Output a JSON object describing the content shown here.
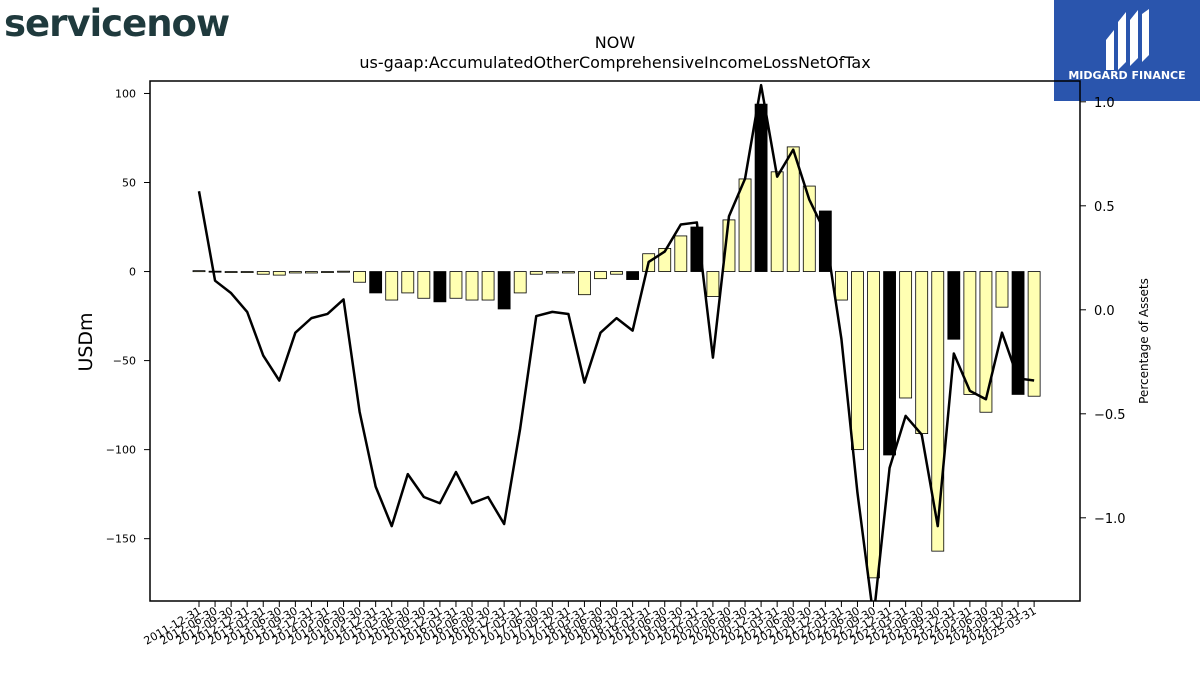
{
  "logos": {
    "left_text": "servicenow",
    "right_text": "MIDGARD FINANCE"
  },
  "chart_data": {
    "type": "bar",
    "title": "NOW",
    "subtitle": "us-gaap:AccumulatedOtherComprehensiveIncomeLossNetOfTax",
    "ylabel": "USDm",
    "y2label": "Percentage of Assets",
    "ylim": [
      -185,
      107
    ],
    "y2lim": [
      -1.4,
      1.1
    ],
    "yticks": [
      100,
      50,
      0,
      -50,
      -100,
      -150
    ],
    "y2ticks": [
      1.0,
      0.5,
      0.0,
      -0.5,
      -1.0
    ],
    "categories": [
      "2011-12-31",
      "2012-06-30",
      "2012-09-30",
      "2012-12-31",
      "2013-03-31",
      "2013-06-30",
      "2013-09-30",
      "2013-12-31",
      "2014-03-31",
      "2014-06-30",
      "2014-09-30",
      "2014-12-31",
      "2015-03-31",
      "2015-06-30",
      "2015-09-30",
      "2015-12-31",
      "2016-03-31",
      "2016-06-30",
      "2016-09-30",
      "2016-12-31",
      "2017-03-31",
      "2017-06-30",
      "2017-09-30",
      "2017-12-31",
      "2018-03-31",
      "2018-06-30",
      "2018-09-30",
      "2018-12-31",
      "2019-03-31",
      "2019-06-30",
      "2019-09-30",
      "2019-12-31",
      "2020-03-31",
      "2020-06-30",
      "2020-09-30",
      "2020-12-31",
      "2021-03-31",
      "2021-06-30",
      "2021-09-30",
      "2021-12-31",
      "2022-03-31",
      "2022-06-30",
      "2022-09-30",
      "2022-12-31",
      "2023-03-31",
      "2023-06-30",
      "2023-09-30",
      "2023-12-31",
      "2024-03-31",
      "2024-06-30",
      "2024-09-30",
      "2024-12-31",
      "2025-03-31"
    ],
    "series": [
      {
        "values": [
          0.5,
          0.2,
          -0.3,
          -0.5,
          -1.5,
          -2,
          -0.8,
          -0.8,
          -0.3,
          0.2,
          -6,
          -12,
          -16,
          -12,
          -15,
          -17,
          -15,
          -16,
          -16,
          -21,
          -12,
          -1.5,
          -0.8,
          -0.8,
          -13,
          -4,
          -1.5,
          -4.5,
          10,
          13,
          20,
          25,
          -14,
          29,
          52,
          94,
          56,
          70,
          48,
          34,
          -16,
          -100,
          -172,
          -103,
          -71,
          -91,
          -157,
          -38,
          -69,
          -79,
          -20,
          -69,
          -70
        ],
        "kind": [
          "light",
          "dark",
          "light",
          "light",
          "light",
          "light",
          "light",
          "light",
          "light",
          "light",
          "light",
          "dark",
          "light",
          "light",
          "light",
          "dark",
          "light",
          "light",
          "light",
          "dark",
          "light",
          "light",
          "light",
          "light",
          "light",
          "light",
          "light",
          "dark",
          "light",
          "light",
          "light",
          "dark",
          "light",
          "light",
          "light",
          "dark",
          "light",
          "light",
          "light",
          "dark",
          "light",
          "light",
          "light",
          "dark",
          "light",
          "light",
          "light",
          "dark",
          "light",
          "light",
          "light",
          "dark",
          "light"
        ]
      },
      {
        "axis": "right",
        "values": [
          0.57,
          0.14,
          0.08,
          -0.01,
          -0.22,
          -0.34,
          -0.11,
          -0.04,
          -0.02,
          0.05,
          -0.49,
          -0.85,
          -1.04,
          -0.79,
          -0.9,
          -0.93,
          -0.78,
          -0.93,
          -0.9,
          -1.03,
          -0.57,
          -0.03,
          -0.01,
          -0.02,
          -0.35,
          -0.11,
          -0.04,
          -0.1,
          0.23,
          0.28,
          0.41,
          0.42,
          -0.23,
          0.45,
          0.63,
          1.08,
          0.64,
          0.77,
          0.53,
          0.37,
          -0.14,
          -0.88,
          -1.48,
          -0.76,
          -0.51,
          -0.6,
          -1.04,
          -0.21,
          -0.39,
          -0.43,
          -0.11,
          -0.33,
          -0.34
        ]
      }
    ],
    "colors": {
      "light": "#ffffb2",
      "dark": "#000000",
      "line": "#000000"
    },
    "grid": false
  }
}
